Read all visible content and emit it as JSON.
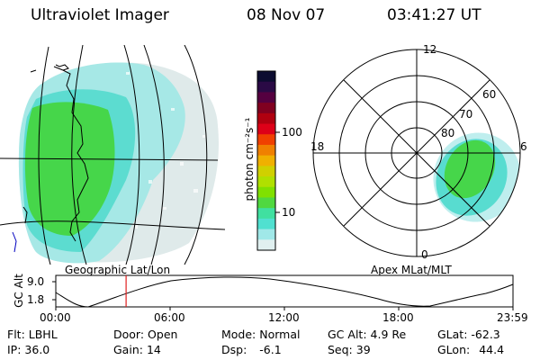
{
  "header": {
    "instrument": "Ultraviolet Imager",
    "date": "08 Nov 07",
    "time": "03:41:27 UT"
  },
  "geo_panel": {
    "label": "Geographic Lat/Lon"
  },
  "polar_panel": {
    "label": "Apex MLat/MLT",
    "mlt_labels": [
      "12",
      "18",
      "6",
      "0"
    ],
    "lat_labels": [
      "60",
      "70",
      "80"
    ]
  },
  "colorbar": {
    "unit_label": "photon cm⁻²s⁻¹",
    "ticks": [
      "100",
      "10"
    ],
    "colors": [
      "#0c0c30",
      "#2a0a45",
      "#550040",
      "#800020",
      "#b00010",
      "#dd0018",
      "#f04000",
      "#f08000",
      "#f0b000",
      "#d0d000",
      "#b0e000",
      "#80e000",
      "#50d840",
      "#40e0a0",
      "#50e0d0",
      "#a0e8e8",
      "#e0f0f0"
    ]
  },
  "altitude_plot": {
    "ylabel": "GC Alt",
    "yticks": [
      "9.0",
      "1.8"
    ],
    "xticks": [
      "00:00",
      "06:00",
      "12:00",
      "18:00",
      "23:59"
    ],
    "marker_time_hours": 3.69
  },
  "info": {
    "flt_label": "Flt:",
    "flt_value": "LBHL",
    "ip_label": "IP:",
    "ip_value": "36.0",
    "door_label": "Door:",
    "door_value": "Open",
    "gain_label": "Gain:",
    "gain_value": "14",
    "mode_label": "Mode:",
    "mode_value": "Normal",
    "dsp_label": "Dsp:",
    "dsp_value": "-6.1",
    "gcalt_label": "GC Alt:",
    "gcalt_value": "4.9 Re",
    "seq_label": "Seq:",
    "seq_value": "39",
    "glat_label": "GLat:",
    "glat_value": "-62.3",
    "glon_label": "GLon:",
    "glon_value": "44.4"
  },
  "colors": {
    "green": "#44d84a",
    "cyan": "#50e0d0",
    "pale_cyan": "#a8ecec",
    "gray_white": "#e4ecec",
    "marker": "#e02020"
  }
}
